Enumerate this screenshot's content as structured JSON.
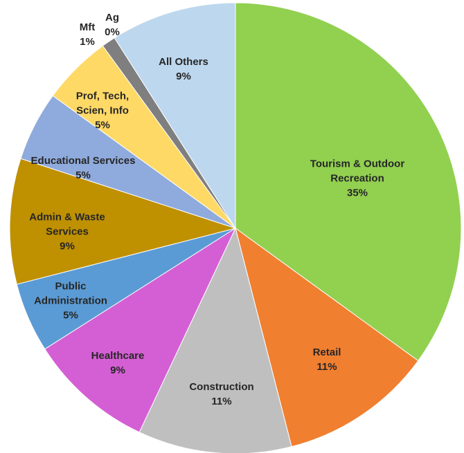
{
  "chart_data": {
    "type": "pie",
    "categories": [
      "Tourism & Outdoor Recreation",
      "Retail",
      "Construction",
      "Healthcare",
      "Public Administration",
      "Admin & Waste Services",
      "Educational Services",
      "Prof, Tech, Scien, Info",
      "Mft",
      "Ag",
      "All Others"
    ],
    "values": [
      35,
      11,
      11,
      9,
      5,
      9,
      5,
      5,
      1,
      0,
      9
    ],
    "value_labels": [
      "35%",
      "11%",
      "11%",
      "9%",
      "5%",
      "9%",
      "5%",
      "5%",
      "1%",
      "0%",
      "9%"
    ],
    "colors": [
      "#92d050",
      "#f07f30",
      "#bfbfbf",
      "#d45fd4",
      "#5b9bd5",
      "#bf9000",
      "#8faadc",
      "#ffd966",
      "#7f7f7f",
      "#c55a11",
      "#bdd7ee"
    ]
  }
}
